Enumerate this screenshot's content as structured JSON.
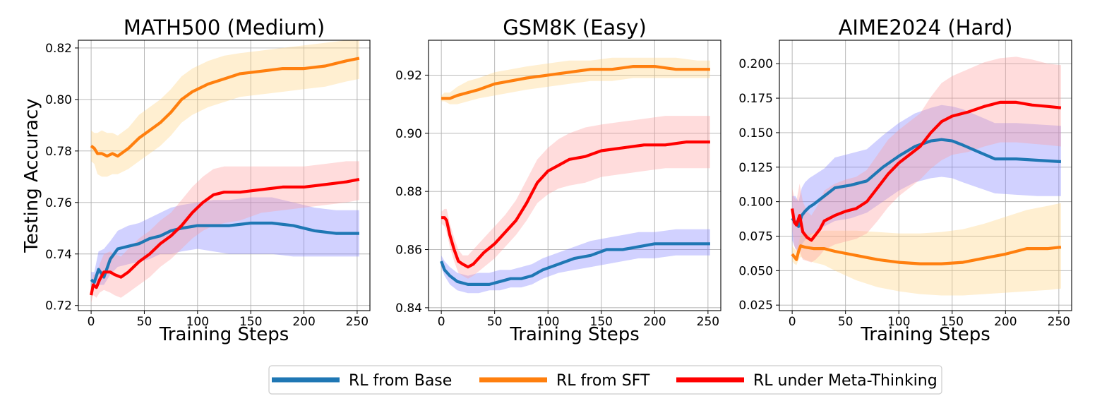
{
  "chart_data": [
    {
      "type": "line",
      "title": "MATH500 (Medium)",
      "xlabel": "Training Steps",
      "ylabel": "Testing Accuracy",
      "xlim": [
        -12,
        262
      ],
      "ylim": [
        0.718,
        0.823
      ],
      "xticks": [
        0,
        50,
        100,
        150,
        200,
        250
      ],
      "yticks": [
        0.72,
        0.74,
        0.76,
        0.78,
        0.8,
        0.82
      ],
      "ytick_labels": [
        "0.72",
        "0.74",
        "0.76",
        "0.78",
        "0.80",
        "0.82"
      ],
      "grid": true,
      "series": [
        {
          "name": "RL from Base",
          "color": "#1f77b4",
          "band_color": "#7b7bff",
          "x": [
            0,
            3,
            7,
            12,
            18,
            25,
            35,
            45,
            55,
            65,
            75,
            85,
            100,
            115,
            130,
            150,
            170,
            190,
            210,
            230,
            252
          ],
          "y": [
            0.73,
            0.729,
            0.734,
            0.731,
            0.738,
            0.742,
            0.743,
            0.744,
            0.746,
            0.747,
            0.749,
            0.75,
            0.751,
            0.751,
            0.751,
            0.752,
            0.752,
            0.751,
            0.749,
            0.748,
            0.748
          ],
          "lower": [
            0.727,
            0.727,
            0.728,
            0.728,
            0.732,
            0.735,
            0.736,
            0.737,
            0.738,
            0.74,
            0.74,
            0.741,
            0.742,
            0.741,
            0.74,
            0.74,
            0.74,
            0.739,
            0.739,
            0.739,
            0.739
          ],
          "upper": [
            0.733,
            0.733,
            0.741,
            0.742,
            0.745,
            0.749,
            0.751,
            0.752,
            0.754,
            0.756,
            0.758,
            0.759,
            0.76,
            0.761,
            0.761,
            0.762,
            0.762,
            0.76,
            0.758,
            0.757,
            0.757
          ]
        },
        {
          "name": "RL from SFT",
          "color": "#ff7f0e",
          "band_color": "#ffd27a",
          "x": [
            0,
            3,
            6,
            10,
            15,
            20,
            25,
            35,
            45,
            55,
            65,
            75,
            85,
            95,
            110,
            125,
            140,
            160,
            180,
            200,
            220,
            240,
            252
          ],
          "y": [
            0.782,
            0.781,
            0.779,
            0.779,
            0.778,
            0.779,
            0.778,
            0.781,
            0.785,
            0.788,
            0.791,
            0.795,
            0.8,
            0.803,
            0.806,
            0.808,
            0.81,
            0.811,
            0.812,
            0.812,
            0.813,
            0.815,
            0.816
          ],
          "lower": [
            0.776,
            0.775,
            0.771,
            0.77,
            0.77,
            0.771,
            0.771,
            0.773,
            0.776,
            0.779,
            0.782,
            0.786,
            0.791,
            0.794,
            0.797,
            0.799,
            0.801,
            0.802,
            0.803,
            0.804,
            0.805,
            0.807,
            0.808
          ],
          "upper": [
            0.788,
            0.787,
            0.787,
            0.788,
            0.787,
            0.787,
            0.786,
            0.789,
            0.794,
            0.797,
            0.8,
            0.804,
            0.809,
            0.812,
            0.815,
            0.817,
            0.818,
            0.819,
            0.82,
            0.821,
            0.822,
            0.823,
            0.823
          ]
        },
        {
          "name": "RL under Meta-Thinking",
          "color": "#ff0000",
          "band_color": "#ff9a9a",
          "x": [
            0,
            2,
            5,
            8,
            12,
            18,
            22,
            28,
            35,
            45,
            55,
            65,
            75,
            85,
            95,
            105,
            115,
            125,
            140,
            160,
            180,
            200,
            220,
            240,
            252
          ],
          "y": [
            0.724,
            0.728,
            0.727,
            0.73,
            0.733,
            0.733,
            0.732,
            0.731,
            0.733,
            0.737,
            0.74,
            0.744,
            0.747,
            0.751,
            0.756,
            0.76,
            0.763,
            0.764,
            0.764,
            0.765,
            0.766,
            0.766,
            0.767,
            0.768,
            0.769
          ],
          "lower": [
            0.721,
            0.724,
            0.723,
            0.725,
            0.726,
            0.725,
            0.724,
            0.723,
            0.725,
            0.728,
            0.731,
            0.735,
            0.738,
            0.742,
            0.746,
            0.749,
            0.751,
            0.752,
            0.753,
            0.756,
            0.757,
            0.758,
            0.759,
            0.76,
            0.761
          ],
          "upper": [
            0.728,
            0.732,
            0.732,
            0.736,
            0.74,
            0.741,
            0.74,
            0.739,
            0.742,
            0.746,
            0.749,
            0.753,
            0.756,
            0.761,
            0.766,
            0.77,
            0.773,
            0.774,
            0.774,
            0.774,
            0.774,
            0.774,
            0.775,
            0.776,
            0.776
          ]
        }
      ]
    },
    {
      "type": "line",
      "title": "GSM8K (Easy)",
      "xlabel": "Training Steps",
      "ylabel": "",
      "xlim": [
        -12,
        262
      ],
      "ylim": [
        0.839,
        0.932
      ],
      "xticks": [
        0,
        50,
        100,
        150,
        200,
        250
      ],
      "yticks": [
        0.84,
        0.86,
        0.88,
        0.9,
        0.92
      ],
      "ytick_labels": [
        "0.84",
        "0.86",
        "0.88",
        "0.90",
        "0.92"
      ],
      "grid": true,
      "series": [
        {
          "name": "RL from Base",
          "color": "#1f77b4",
          "band_color": "#7b7bff",
          "x": [
            0,
            3,
            8,
            15,
            25,
            35,
            45,
            55,
            65,
            75,
            85,
            95,
            110,
            125,
            140,
            155,
            170,
            185,
            200,
            220,
            240,
            252
          ],
          "y": [
            0.856,
            0.853,
            0.851,
            0.849,
            0.848,
            0.848,
            0.848,
            0.849,
            0.85,
            0.85,
            0.851,
            0.853,
            0.855,
            0.857,
            0.858,
            0.86,
            0.86,
            0.861,
            0.862,
            0.862,
            0.862,
            0.862
          ],
          "lower": [
            0.854,
            0.851,
            0.848,
            0.846,
            0.845,
            0.845,
            0.846,
            0.846,
            0.847,
            0.847,
            0.848,
            0.85,
            0.852,
            0.853,
            0.854,
            0.855,
            0.856,
            0.857,
            0.857,
            0.858,
            0.858,
            0.858
          ],
          "upper": [
            0.858,
            0.856,
            0.854,
            0.852,
            0.851,
            0.852,
            0.852,
            0.853,
            0.853,
            0.854,
            0.855,
            0.857,
            0.859,
            0.861,
            0.863,
            0.864,
            0.865,
            0.866,
            0.866,
            0.867,
            0.867,
            0.867
          ]
        },
        {
          "name": "RL from SFT",
          "color": "#ff7f0e",
          "band_color": "#ffd27a",
          "x": [
            0,
            3,
            8,
            15,
            25,
            35,
            50,
            65,
            80,
            100,
            120,
            140,
            160,
            180,
            200,
            220,
            240,
            252
          ],
          "y": [
            0.912,
            0.912,
            0.912,
            0.913,
            0.914,
            0.915,
            0.917,
            0.918,
            0.919,
            0.92,
            0.921,
            0.922,
            0.922,
            0.923,
            0.923,
            0.922,
            0.922,
            0.922
          ],
          "lower": [
            0.911,
            0.911,
            0.91,
            0.91,
            0.911,
            0.912,
            0.913,
            0.914,
            0.915,
            0.916,
            0.917,
            0.918,
            0.918,
            0.919,
            0.919,
            0.919,
            0.919,
            0.919
          ],
          "upper": [
            0.913,
            0.914,
            0.914,
            0.916,
            0.918,
            0.919,
            0.921,
            0.922,
            0.923,
            0.924,
            0.925,
            0.925,
            0.926,
            0.926,
            0.926,
            0.926,
            0.925,
            0.925
          ]
        },
        {
          "name": "RL under Meta-Thinking",
          "color": "#ff0000",
          "band_color": "#ff9a9a",
          "x": [
            0,
            3,
            5,
            8,
            12,
            16,
            20,
            25,
            30,
            40,
            50,
            60,
            70,
            80,
            90,
            100,
            110,
            120,
            135,
            150,
            170,
            190,
            210,
            230,
            252
          ],
          "y": [
            0.871,
            0.871,
            0.87,
            0.865,
            0.86,
            0.856,
            0.855,
            0.854,
            0.855,
            0.859,
            0.862,
            0.866,
            0.87,
            0.876,
            0.883,
            0.887,
            0.889,
            0.891,
            0.892,
            0.894,
            0.895,
            0.896,
            0.896,
            0.897,
            0.897
          ],
          "lower": [
            0.869,
            0.868,
            0.866,
            0.861,
            0.856,
            0.852,
            0.851,
            0.85,
            0.851,
            0.854,
            0.857,
            0.861,
            0.865,
            0.87,
            0.876,
            0.879,
            0.881,
            0.882,
            0.883,
            0.885,
            0.886,
            0.887,
            0.888,
            0.888,
            0.888
          ],
          "upper": [
            0.873,
            0.874,
            0.874,
            0.869,
            0.864,
            0.86,
            0.858,
            0.858,
            0.86,
            0.864,
            0.868,
            0.872,
            0.877,
            0.884,
            0.891,
            0.895,
            0.898,
            0.9,
            0.902,
            0.903,
            0.904,
            0.905,
            0.906,
            0.906,
            0.906
          ]
        }
      ]
    },
    {
      "type": "line",
      "title": "AIME2024 (Hard)",
      "xlabel": "Training Steps",
      "ylabel": "",
      "xlim": [
        -12,
        262
      ],
      "ylim": [
        0.021,
        0.217
      ],
      "xticks": [
        0,
        50,
        100,
        150,
        200,
        250
      ],
      "yticks": [
        0.025,
        0.05,
        0.075,
        0.1,
        0.125,
        0.15,
        0.175,
        0.2
      ],
      "ytick_labels": [
        "0.025",
        "0.050",
        "0.075",
        "0.100",
        "0.125",
        "0.150",
        "0.175",
        "0.200"
      ],
      "grid": true,
      "series": [
        {
          "name": "RL from Base",
          "color": "#1f77b4",
          "band_color": "#7b7bff",
          "x": [
            0,
            3,
            6,
            9,
            12,
            16,
            20,
            30,
            40,
            55,
            70,
            85,
            100,
            115,
            130,
            140,
            150,
            160,
            175,
            190,
            210,
            230,
            252
          ],
          "y": [
            0.088,
            0.085,
            0.082,
            0.09,
            0.093,
            0.096,
            0.098,
            0.104,
            0.11,
            0.112,
            0.115,
            0.125,
            0.133,
            0.14,
            0.144,
            0.145,
            0.144,
            0.141,
            0.136,
            0.131,
            0.131,
            0.13,
            0.129
          ],
          "lower": [
            0.072,
            0.066,
            0.064,
            0.069,
            0.072,
            0.075,
            0.077,
            0.082,
            0.086,
            0.088,
            0.092,
            0.1,
            0.108,
            0.114,
            0.117,
            0.118,
            0.117,
            0.114,
            0.11,
            0.106,
            0.105,
            0.104,
            0.104
          ],
          "upper": [
            0.104,
            0.104,
            0.1,
            0.11,
            0.114,
            0.117,
            0.119,
            0.124,
            0.132,
            0.135,
            0.138,
            0.148,
            0.157,
            0.164,
            0.168,
            0.17,
            0.169,
            0.167,
            0.162,
            0.157,
            0.157,
            0.156,
            0.155
          ]
        },
        {
          "name": "RL from SFT",
          "color": "#ff7f0e",
          "band_color": "#ffd27a",
          "x": [
            0,
            2,
            4,
            6,
            8,
            12,
            20,
            30,
            40,
            60,
            80,
            100,
            120,
            140,
            160,
            180,
            200,
            220,
            240,
            252
          ],
          "y": [
            0.062,
            0.06,
            0.058,
            0.064,
            0.068,
            0.067,
            0.066,
            0.066,
            0.064,
            0.061,
            0.058,
            0.056,
            0.055,
            0.055,
            0.056,
            0.059,
            0.062,
            0.066,
            0.066,
            0.067
          ],
          "lower": [
            0.057,
            0.055,
            0.054,
            0.058,
            0.06,
            0.058,
            0.056,
            0.054,
            0.05,
            0.043,
            0.038,
            0.035,
            0.033,
            0.032,
            0.032,
            0.033,
            0.034,
            0.035,
            0.036,
            0.037
          ],
          "upper": [
            0.068,
            0.066,
            0.064,
            0.07,
            0.076,
            0.077,
            0.077,
            0.079,
            0.079,
            0.079,
            0.078,
            0.077,
            0.077,
            0.078,
            0.08,
            0.084,
            0.089,
            0.094,
            0.097,
            0.099
          ]
        },
        {
          "name": "RL under Meta-Thinking",
          "color": "#ff0000",
          "band_color": "#ff9a9a",
          "x": [
            0,
            2,
            4,
            7,
            10,
            14,
            18,
            22,
            26,
            30,
            40,
            50,
            60,
            70,
            80,
            90,
            100,
            110,
            120,
            130,
            140,
            150,
            165,
            180,
            195,
            210,
            225,
            240,
            252
          ],
          "y": [
            0.095,
            0.085,
            0.083,
            0.09,
            0.078,
            0.074,
            0.072,
            0.076,
            0.08,
            0.086,
            0.09,
            0.093,
            0.095,
            0.1,
            0.11,
            0.12,
            0.128,
            0.134,
            0.14,
            0.15,
            0.158,
            0.162,
            0.165,
            0.169,
            0.172,
            0.172,
            0.17,
            0.169,
            0.168
          ],
          "lower": [
            0.08,
            0.068,
            0.064,
            0.064,
            0.058,
            0.057,
            0.056,
            0.058,
            0.061,
            0.065,
            0.069,
            0.071,
            0.073,
            0.077,
            0.086,
            0.096,
            0.104,
            0.11,
            0.116,
            0.124,
            0.13,
            0.134,
            0.136,
            0.14,
            0.143,
            0.143,
            0.142,
            0.141,
            0.14
          ],
          "upper": [
            0.11,
            0.103,
            0.101,
            0.113,
            0.1,
            0.093,
            0.09,
            0.095,
            0.1,
            0.108,
            0.113,
            0.116,
            0.118,
            0.123,
            0.134,
            0.145,
            0.152,
            0.158,
            0.164,
            0.176,
            0.186,
            0.191,
            0.196,
            0.201,
            0.204,
            0.205,
            0.203,
            0.2,
            0.199
          ]
        }
      ]
    }
  ],
  "legend": {
    "position": "bottom-center",
    "entries": [
      {
        "label": "RL from Base",
        "color": "#1f77b4"
      },
      {
        "label": "RL from SFT",
        "color": "#ff7f0e"
      },
      {
        "label": "RL under Meta-Thinking",
        "color": "#ff0000"
      }
    ]
  }
}
